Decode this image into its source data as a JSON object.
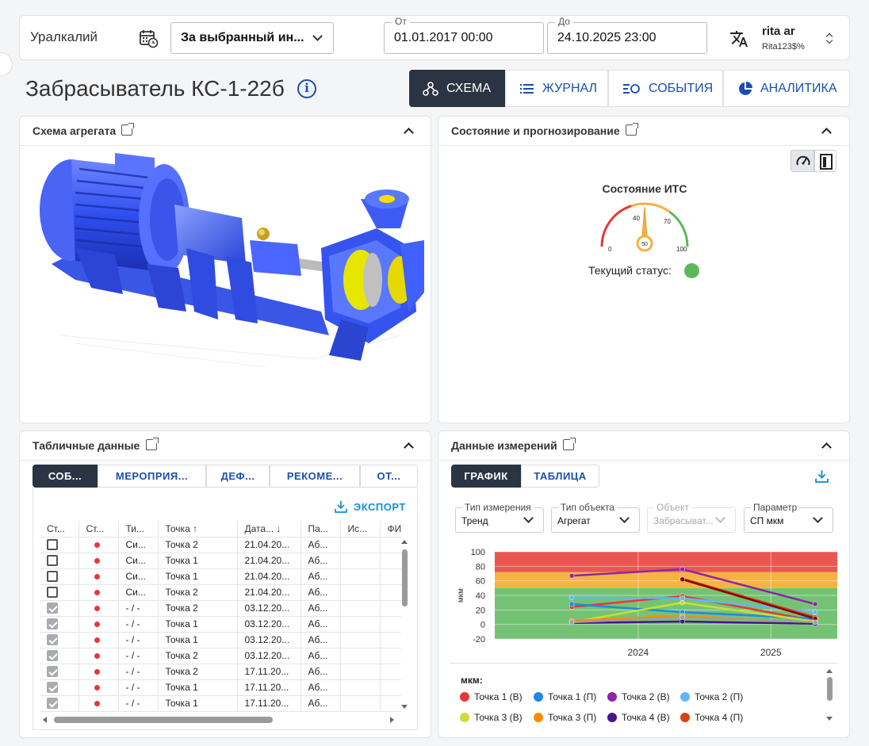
{
  "topbar": {
    "org": "Уралкалий",
    "period_select": "За выбранный ин...",
    "from_label": "От",
    "from_value": "01.01.2017 00:00",
    "to_label": "До",
    "to_value": "24.10.2025 23:00",
    "user_name": "rita ar",
    "user_login": "Rita123$%"
  },
  "page": {
    "title": "Забрасыватель КС-1-22б",
    "tabs": [
      {
        "label": "СХЕМА",
        "icon": "scheme-icon"
      },
      {
        "label": "ЖУРНАЛ",
        "icon": "list-icon"
      },
      {
        "label": "СОБЫТИЯ",
        "icon": "events-icon"
      },
      {
        "label": "АНАЛИТИКА",
        "icon": "pie-icon"
      }
    ]
  },
  "scheme_panel": {
    "title": "Схема агрегата"
  },
  "state_panel": {
    "title": "Состояние и прогнозирование",
    "gauge_title": "Состояние ИТС",
    "gauge_ticks": [
      "0",
      "40",
      "70",
      "100"
    ],
    "gauge_value": 50,
    "gauge_value_label": "50",
    "status_label": "Текущий статус:",
    "status_color": "#5cb85c"
  },
  "table_panel": {
    "title": "Табличные данные",
    "tabs": [
      "СОБ...",
      "МЕРОПРИЯ...",
      "ДЕФ...",
      "РЕКОМЕ...",
      "ОТ..."
    ],
    "export_label": "ЭКСПОРТ",
    "columns": [
      "Ст...",
      "Ст...",
      "Ти...",
      "Точка ↑",
      "Дата... ↓",
      "Па...",
      "Ис...",
      "ФИО"
    ],
    "rows": [
      {
        "checked": false,
        "type": "Си...",
        "point": "Точка 2",
        "date": "21.04.20...",
        "param": "Аб..."
      },
      {
        "checked": false,
        "type": "Си...",
        "point": "Точка 1",
        "date": "21.04.20...",
        "param": "Аб..."
      },
      {
        "checked": false,
        "type": "Си...",
        "point": "Точка 1",
        "date": "21.04.20...",
        "param": "Аб..."
      },
      {
        "checked": false,
        "type": "Си...",
        "point": "Точка 2",
        "date": "21.04.20...",
        "param": "Аб..."
      },
      {
        "checked": true,
        "type": "- / -",
        "point": "Точка 2",
        "date": "03.12.20...",
        "param": "Аб..."
      },
      {
        "checked": true,
        "type": "- / -",
        "point": "Точка 1",
        "date": "03.12.20...",
        "param": "Аб..."
      },
      {
        "checked": true,
        "type": "- / -",
        "point": "Точка 1",
        "date": "03.12.20...",
        "param": "Аб..."
      },
      {
        "checked": true,
        "type": "- / -",
        "point": "Точка 2",
        "date": "03.12.20...",
        "param": "Аб..."
      },
      {
        "checked": true,
        "type": "- / -",
        "point": "Точка 2",
        "date": "17.11.20...",
        "param": "Аб..."
      },
      {
        "checked": true,
        "type": "- / -",
        "point": "Точка 1",
        "date": "17.11.20...",
        "param": "Аб..."
      },
      {
        "checked": true,
        "type": "- / -",
        "point": "Точка 1",
        "date": "17.11.20...",
        "param": "Аб..."
      }
    ]
  },
  "measure_panel": {
    "title": "Данные измерений",
    "tabs": [
      "ГРАФИК",
      "ТАБЛИЦА"
    ],
    "selects": [
      {
        "label": "Тип измерения",
        "value": "Тренд"
      },
      {
        "label": "Тип объекта",
        "value": "Агрегат"
      },
      {
        "label": "Объект",
        "value": "Забрасыват..."
      },
      {
        "label": "Параметр",
        "value": "СП мкм"
      }
    ],
    "legend_title": "мкм:"
  },
  "chart_data": {
    "type": "line",
    "ylabel": "мкм",
    "xlabel": "",
    "ylim": [
      -20,
      100
    ],
    "yticks": [
      -20,
      0,
      20,
      40,
      60,
      80,
      100
    ],
    "xticks": [
      "2024",
      "2025"
    ],
    "x": [
      "2023-07",
      "2024-05",
      "2025-05"
    ],
    "bands": [
      {
        "from": -20,
        "to": 50,
        "color": "#5cb85c"
      },
      {
        "from": 50,
        "to": 72,
        "color": "#f5a623"
      },
      {
        "from": 72,
        "to": 100,
        "color": "#e53935"
      }
    ],
    "series": [
      {
        "name": "Точка 1 (В)",
        "color": "#e53935",
        "values": [
          24,
          39,
          5
        ]
      },
      {
        "name": "Точка 1 (П)",
        "color": "#1e88e5",
        "values": [
          28,
          17,
          8
        ]
      },
      {
        "name": "Точка 2 (В)",
        "color": "#8e24aa",
        "values": [
          67,
          76,
          28
        ]
      },
      {
        "name": "Точка 2 (П)",
        "color": "#64b5f6",
        "values": [
          37,
          36,
          17
        ]
      },
      {
        "name": "Точка 3 (В)",
        "color": "#cddc39",
        "values": [
          3,
          30,
          4
        ]
      },
      {
        "name": "Точка 3 (П)",
        "color": "#fb8c00",
        "values": [
          5,
          12,
          2
        ]
      },
      {
        "name": "Точка 4 (В)",
        "color": "#4a148c",
        "values": [
          2,
          4,
          1
        ]
      },
      {
        "name": "Точка 4 (П)",
        "color": "#d84315",
        "values": [
          null,
          63,
          10
        ]
      },
      {
        "name": "",
        "color": "#8b0000",
        "values": [
          null,
          62,
          8
        ]
      },
      {
        "name": "",
        "color": "#9e9e9e",
        "values": [
          3,
          10,
          3
        ]
      }
    ]
  }
}
